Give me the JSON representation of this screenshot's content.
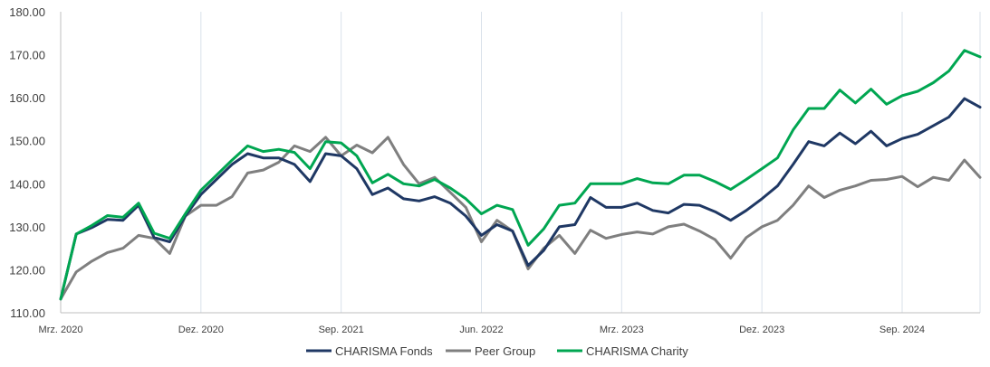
{
  "chart_data": {
    "type": "line",
    "title": "",
    "xlabel": "",
    "ylabel": "",
    "ylim": [
      110,
      180
    ],
    "yticks": [
      "110.00",
      "120.00",
      "130.00",
      "140.00",
      "150.00",
      "160.00",
      "170.00",
      "180.00"
    ],
    "x_range": [
      "2020-03",
      "2025-02"
    ],
    "xticks": [
      {
        "date": "2020-03",
        "label": "Mrz. 2020"
      },
      {
        "date": "2020-12",
        "label": "Dez. 2020"
      },
      {
        "date": "2021-09",
        "label": "Sep. 2021"
      },
      {
        "date": "2022-06",
        "label": "Jun. 2022"
      },
      {
        "date": "2023-03",
        "label": "Mrz. 2023"
      },
      {
        "date": "2023-12",
        "label": "Dez. 2023"
      },
      {
        "date": "2024-09",
        "label": "Sep. 2024"
      }
    ],
    "grid": "vertical",
    "legend_position": "bottom",
    "x": [
      "2020-03",
      "2020-04",
      "2020-05",
      "2020-06",
      "2020-07",
      "2020-08",
      "2020-09",
      "2020-10",
      "2020-11",
      "2020-12",
      "2021-01",
      "2021-02",
      "2021-03",
      "2021-04",
      "2021-05",
      "2021-06",
      "2021-07",
      "2021-08",
      "2021-09",
      "2021-10",
      "2021-11",
      "2021-12",
      "2022-01",
      "2022-02",
      "2022-03",
      "2022-04",
      "2022-05",
      "2022-06",
      "2022-07",
      "2022-08",
      "2022-09",
      "2022-10",
      "2022-11",
      "2022-12",
      "2023-01",
      "2023-02",
      "2023-03",
      "2023-04",
      "2023-05",
      "2023-06",
      "2023-07",
      "2023-08",
      "2023-09",
      "2023-10",
      "2023-11",
      "2023-12",
      "2024-01",
      "2024-02",
      "2024-03",
      "2024-04",
      "2024-05",
      "2024-06",
      "2024-07",
      "2024-08",
      "2024-09",
      "2024-10",
      "2024-11",
      "2024-12",
      "2025-01",
      "2025-02"
    ],
    "series": [
      {
        "name": "CHARISMA Fonds",
        "color": "#1f3864",
        "values": [
          113.2,
          128.3,
          129.8,
          131.7,
          131.5,
          135.0,
          127.5,
          126.5,
          132.5,
          137.5,
          141.0,
          144.5,
          147.0,
          146.0,
          146.0,
          144.5,
          140.5,
          147.0,
          146.5,
          143.5,
          137.5,
          139.0,
          136.5,
          136.0,
          137.0,
          135.5,
          132.5,
          128.0,
          130.5,
          129.0,
          121.0,
          124.5,
          130.0,
          130.5,
          136.8,
          134.5,
          134.5,
          135.5,
          133.8,
          133.2,
          135.2,
          135.0,
          133.5,
          131.5,
          133.8,
          136.5,
          139.5,
          144.5,
          149.8,
          148.8,
          151.8,
          149.3,
          152.2,
          148.8,
          150.5,
          151.5,
          153.5,
          155.5,
          159.8,
          157.8
        ]
      },
      {
        "name": "Peer Group",
        "color": "#7f7f7f",
        "values": [
          113.2,
          119.5,
          122.0,
          124.0,
          125.0,
          128.0,
          127.3,
          123.8,
          132.5,
          135.0,
          135.0,
          137.0,
          142.5,
          143.2,
          145.0,
          148.8,
          147.5,
          150.8,
          146.5,
          149.0,
          147.2,
          150.8,
          144.5,
          140.0,
          141.5,
          138.0,
          134.5,
          126.5,
          131.5,
          129.0,
          120.2,
          125.0,
          128.0,
          123.8,
          129.2,
          127.3,
          128.2,
          128.8,
          128.3,
          130.0,
          130.6,
          129.0,
          127.0,
          122.7,
          127.5,
          130.0,
          131.5,
          135.0,
          139.5,
          136.8,
          138.5,
          139.5,
          140.8,
          141.0,
          141.7,
          139.3,
          141.5,
          140.8,
          145.5,
          141.5
        ]
      },
      {
        "name": "CHARISMA Charity",
        "color": "#00a651",
        "values": [
          113.2,
          128.3,
          130.3,
          132.6,
          132.2,
          135.5,
          128.5,
          127.3,
          133.0,
          138.5,
          142.0,
          145.5,
          148.8,
          147.5,
          148.0,
          147.3,
          143.5,
          149.8,
          149.5,
          146.5,
          140.2,
          142.2,
          140.0,
          139.5,
          141.0,
          139.0,
          136.5,
          133.0,
          135.0,
          134.0,
          125.7,
          129.5,
          135.0,
          135.5,
          140.0,
          140.0,
          140.0,
          141.2,
          140.2,
          140.0,
          142.0,
          142.0,
          140.5,
          138.7,
          141.0,
          143.5,
          146.0,
          152.5,
          157.5,
          157.5,
          161.8,
          158.8,
          162.0,
          158.5,
          160.5,
          161.5,
          163.5,
          166.2,
          171.0,
          169.5
        ]
      }
    ]
  }
}
